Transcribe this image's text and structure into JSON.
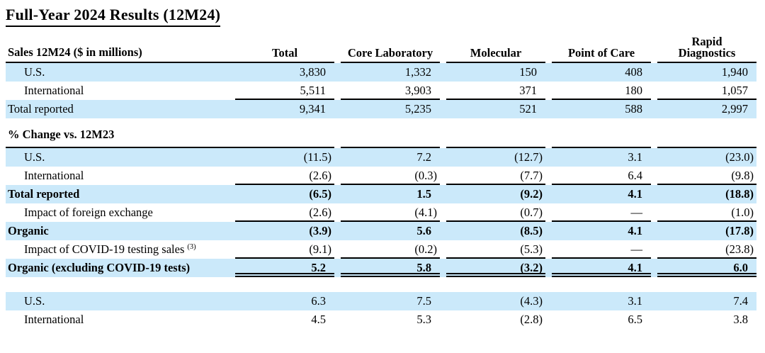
{
  "page": {
    "title": "Full-Year 2024 Results (12M24)"
  },
  "colors": {
    "row_highlight": "#cbe9fa",
    "text": "#000000",
    "rule": "#000000"
  },
  "table": {
    "columns": [
      "Total",
      "Core Laboratory",
      "Molecular",
      "Point of Care",
      "Rapid\nDiagnostics"
    ],
    "sections": [
      {
        "name": "sales",
        "header_label": "Sales 12M24 ($ in millions)",
        "rows": [
          {
            "label": "U.S.",
            "values": [
              "3,830",
              "1,332",
              "150",
              "408",
              "1,940"
            ]
          },
          {
            "label": "International",
            "values": [
              "5,511",
              "3,903",
              "371",
              "180",
              "1,057"
            ]
          },
          {
            "label": "Total reported",
            "values": [
              "9,341",
              "5,235",
              "521",
              "588",
              "2,997"
            ]
          }
        ]
      },
      {
        "name": "pct_change_vs_12m23",
        "header_label": "% Change vs. 12M23",
        "rows": [
          {
            "label": "U.S.",
            "values": [
              "(11.5)",
              "7.2",
              "(12.7)",
              "3.1",
              "(23.0)"
            ]
          },
          {
            "label": "International",
            "values": [
              "(2.6)",
              "(0.3)",
              "(7.7)",
              "6.4",
              "(9.8)"
            ]
          },
          {
            "label": "Total reported",
            "values": [
              "(6.5)",
              "1.5",
              "(9.2)",
              "4.1",
              "(18.8)"
            ]
          },
          {
            "label": "Impact of foreign exchange",
            "values": [
              "(2.6)",
              "(4.1)",
              "(0.7)",
              "—",
              "(1.0)"
            ]
          },
          {
            "label": "Organic",
            "values": [
              "(3.9)",
              "5.6",
              "(8.5)",
              "4.1",
              "(17.8)"
            ]
          },
          {
            "label": "Impact of COVID-19 testing sales",
            "label_superscript": "(3)",
            "values": [
              "(9.1)",
              "(0.2)",
              "(5.3)",
              "—",
              "(23.8)"
            ]
          },
          {
            "label": "Organic (excluding COVID-19 tests)",
            "values": [
              "5.2",
              "5.8",
              "(3.2)",
              "4.1",
              "6.0"
            ]
          }
        ]
      },
      {
        "name": "bottom_growth",
        "rows": [
          {
            "label": "U.S.",
            "values": [
              "6.3",
              "7.5",
              "(4.3)",
              "3.1",
              "7.4"
            ]
          },
          {
            "label": "International",
            "values": [
              "4.5",
              "5.3",
              "(2.8)",
              "6.5",
              "3.8"
            ]
          }
        ]
      }
    ]
  }
}
